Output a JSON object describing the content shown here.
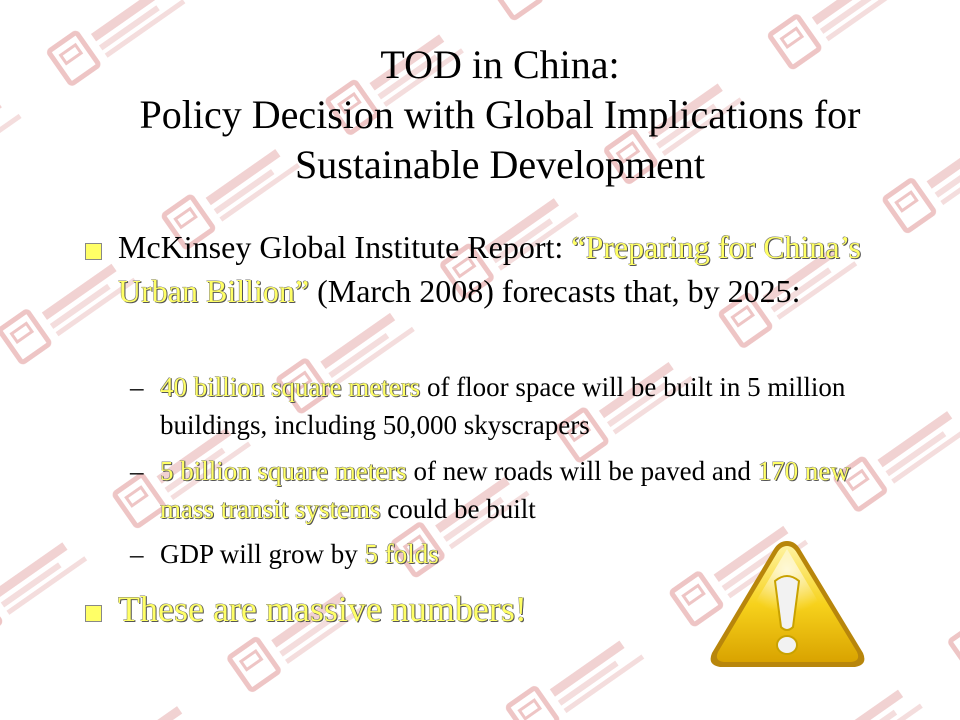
{
  "slide": {
    "title_lines": [
      "TOD in China:",
      "Policy Decision with Global Implications for",
      "Sustainable Development"
    ],
    "bullet1": {
      "prefix": "McKinsey Global Institute Report: ",
      "report_title": "“Preparing for China’s Urban Billion”",
      "suffix": " (March 2008) forecasts that, by 2025:"
    },
    "subbullets": [
      {
        "dash": "–",
        "highlight": "40 billion square meters",
        "text": " of floor space will be built in 5 million buildings, including 50,000 skyscrapers"
      },
      {
        "dash": "–",
        "highlight": "5 billion square meters",
        "text_mid": " of new roads will be paved and ",
        "highlight2": "170 new mass transit systems",
        "text_end": " could be built"
      },
      {
        "dash": "–",
        "text": "GDP will grow by ",
        "highlight": "5 folds"
      }
    ],
    "bullet2": "These are massive numbers!",
    "icon": "warning-triangle-icon",
    "colors": {
      "highlight": "#ffff66",
      "warning_fill": "#f5c400",
      "watermark": "#e9b3b3"
    }
  }
}
